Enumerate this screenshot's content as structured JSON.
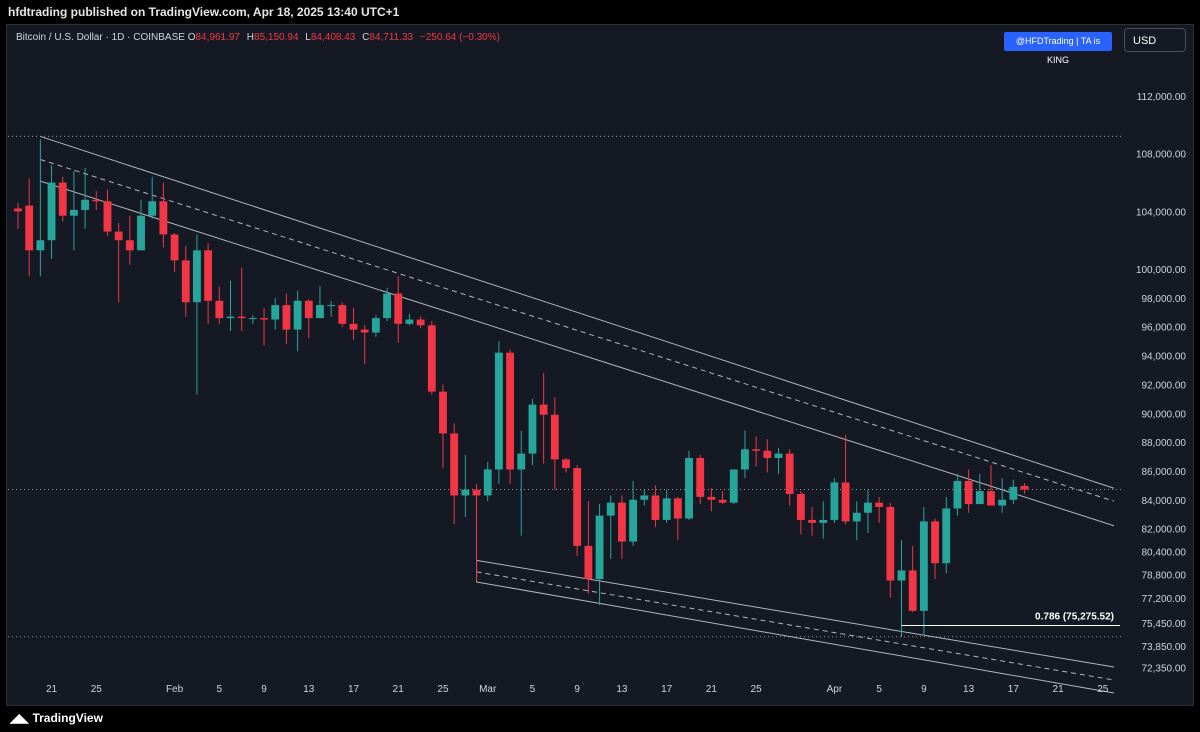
{
  "header": {
    "published": "hfdtrading published on TradingView.com, Apr 18, 2025 13:40 UTC+1"
  },
  "legend": {
    "symbol": "Bitcoin / U.S. Dollar · 1D · COINBASE",
    "o_key": "O",
    "o_val": "84,961.97",
    "h_key": "H",
    "h_val": "85,150.94",
    "l_key": "L",
    "l_val": "84,408.43",
    "c_key": "C",
    "c_val": "84,711.33",
    "change": "−250.64 (−0.30%)"
  },
  "watermark": "@HFDTrading | TA is KING",
  "currency_button": "USD",
  "footer": {
    "brand": "TradingView"
  },
  "colors": {
    "up": "#26a69a",
    "down": "#f23645",
    "background": "#151923",
    "channel": "#b2b5be"
  },
  "chart_data": {
    "type": "candlestick",
    "symbol": "BTCUSD",
    "timeframe": "1D",
    "ylim": [
      71500,
      114500
    ],
    "xlim": [
      "2025-01-18",
      "2025-04-26"
    ],
    "y_ticks": [
      {
        "value": 112000,
        "label": "112,000.00"
      },
      {
        "value": 108000,
        "label": "108,000.00"
      },
      {
        "value": 104000,
        "label": "104,000.00"
      },
      {
        "value": 100000,
        "label": "100,000.00"
      },
      {
        "value": 98000,
        "label": "98,000.00"
      },
      {
        "value": 96000,
        "label": "96,000.00"
      },
      {
        "value": 94000,
        "label": "94,000.00"
      },
      {
        "value": 92000,
        "label": "92,000.00"
      },
      {
        "value": 90000,
        "label": "90,000.00"
      },
      {
        "value": 88000,
        "label": "88,000.00"
      },
      {
        "value": 86000,
        "label": "86,000.00"
      },
      {
        "value": 84000,
        "label": "84,000.00"
      },
      {
        "value": 82000,
        "label": "82,000.00"
      },
      {
        "value": 80400,
        "label": "80,400.00"
      },
      {
        "value": 78800,
        "label": "78,800.00"
      },
      {
        "value": 77200,
        "label": "77,200.00"
      },
      {
        "value": 75450,
        "label": "75,450.00"
      },
      {
        "value": 73850,
        "label": "73,850.00"
      },
      {
        "value": 72350,
        "label": "72,350.00"
      }
    ],
    "x_ticks": [
      {
        "date": "2025-01-21",
        "label": "21"
      },
      {
        "date": "2025-01-25",
        "label": "25"
      },
      {
        "date": "2025-02-01",
        "label": "Feb"
      },
      {
        "date": "2025-02-05",
        "label": "5"
      },
      {
        "date": "2025-02-09",
        "label": "9"
      },
      {
        "date": "2025-02-13",
        "label": "13"
      },
      {
        "date": "2025-02-17",
        "label": "17"
      },
      {
        "date": "2025-02-21",
        "label": "21"
      },
      {
        "date": "2025-02-25",
        "label": "25"
      },
      {
        "date": "2025-03-01",
        "label": "Mar"
      },
      {
        "date": "2025-03-05",
        "label": "5"
      },
      {
        "date": "2025-03-09",
        "label": "9"
      },
      {
        "date": "2025-03-13",
        "label": "13"
      },
      {
        "date": "2025-03-17",
        "label": "17"
      },
      {
        "date": "2025-03-21",
        "label": "21"
      },
      {
        "date": "2025-03-25",
        "label": "25"
      },
      {
        "date": "2025-04-01",
        "label": "Apr"
      },
      {
        "date": "2025-04-05",
        "label": "5"
      },
      {
        "date": "2025-04-09",
        "label": "9"
      },
      {
        "date": "2025-04-13",
        "label": "13"
      },
      {
        "date": "2025-04-17",
        "label": "17"
      },
      {
        "date": "2025-04-21",
        "label": "21"
      },
      {
        "date": "2025-04-25",
        "label": "25"
      }
    ],
    "candles": [
      {
        "date": "2025-01-18",
        "o": 104200,
        "h": 104600,
        "l": 102800,
        "c": 104000
      },
      {
        "date": "2025-01-19",
        "o": 104400,
        "h": 106300,
        "l": 99500,
        "c": 101300
      },
      {
        "date": "2025-01-20",
        "o": 101300,
        "h": 109000,
        "l": 99500,
        "c": 102000
      },
      {
        "date": "2025-01-21",
        "o": 102000,
        "h": 107200,
        "l": 100700,
        "c": 106000
      },
      {
        "date": "2025-01-22",
        "o": 106000,
        "h": 106400,
        "l": 103300,
        "c": 103700
      },
      {
        "date": "2025-01-23",
        "o": 103700,
        "h": 106800,
        "l": 101300,
        "c": 104100
      },
      {
        "date": "2025-01-24",
        "o": 104100,
        "h": 107000,
        "l": 102800,
        "c": 104800
      },
      {
        "date": "2025-01-25",
        "o": 104800,
        "h": 105400,
        "l": 104100,
        "c": 104700
      },
      {
        "date": "2025-01-26",
        "o": 104700,
        "h": 105500,
        "l": 102300,
        "c": 102600
      },
      {
        "date": "2025-01-27",
        "o": 102600,
        "h": 103200,
        "l": 97700,
        "c": 102000
      },
      {
        "date": "2025-01-28",
        "o": 102000,
        "h": 103700,
        "l": 100300,
        "c": 101300
      },
      {
        "date": "2025-01-29",
        "o": 101300,
        "h": 104800,
        "l": 101300,
        "c": 103700
      },
      {
        "date": "2025-01-30",
        "o": 103700,
        "h": 106400,
        "l": 103500,
        "c": 104700
      },
      {
        "date": "2025-01-31",
        "o": 104700,
        "h": 106000,
        "l": 101500,
        "c": 102400
      },
      {
        "date": "2025-02-01",
        "o": 102400,
        "h": 102500,
        "l": 99800,
        "c": 100600
      },
      {
        "date": "2025-02-02",
        "o": 100600,
        "h": 101600,
        "l": 96700,
        "c": 97700
      },
      {
        "date": "2025-02-03",
        "o": 97700,
        "h": 102400,
        "l": 91300,
        "c": 101300
      },
      {
        "date": "2025-02-04",
        "o": 101300,
        "h": 101800,
        "l": 96200,
        "c": 97800
      },
      {
        "date": "2025-02-05",
        "o": 97800,
        "h": 98800,
        "l": 96200,
        "c": 96600
      },
      {
        "date": "2025-02-06",
        "o": 96600,
        "h": 99200,
        "l": 95700,
        "c": 96700
      },
      {
        "date": "2025-02-07",
        "o": 96700,
        "h": 100100,
        "l": 95700,
        "c": 96600
      },
      {
        "date": "2025-02-08",
        "o": 96600,
        "h": 96800,
        "l": 96200,
        "c": 96600
      },
      {
        "date": "2025-02-09",
        "o": 96600,
        "h": 97300,
        "l": 94700,
        "c": 96500
      },
      {
        "date": "2025-02-10",
        "o": 96500,
        "h": 98000,
        "l": 95800,
        "c": 97500
      },
      {
        "date": "2025-02-11",
        "o": 97500,
        "h": 98300,
        "l": 94800,
        "c": 95800
      },
      {
        "date": "2025-02-12",
        "o": 95800,
        "h": 98500,
        "l": 94300,
        "c": 97800
      },
      {
        "date": "2025-02-13",
        "o": 97800,
        "h": 97900,
        "l": 95200,
        "c": 96600
      },
      {
        "date": "2025-02-14",
        "o": 96600,
        "h": 98800,
        "l": 96600,
        "c": 97500
      },
      {
        "date": "2025-02-15",
        "o": 97500,
        "h": 97800,
        "l": 96700,
        "c": 97500
      },
      {
        "date": "2025-02-16",
        "o": 97500,
        "h": 97700,
        "l": 96000,
        "c": 96200
      },
      {
        "date": "2025-02-17",
        "o": 96200,
        "h": 97300,
        "l": 95100,
        "c": 95800
      },
      {
        "date": "2025-02-18",
        "o": 95800,
        "h": 96100,
        "l": 93400,
        "c": 95600
      },
      {
        "date": "2025-02-19",
        "o": 95600,
        "h": 96800,
        "l": 95300,
        "c": 96600
      },
      {
        "date": "2025-02-20",
        "o": 96600,
        "h": 98700,
        "l": 96400,
        "c": 98300
      },
      {
        "date": "2025-02-21",
        "o": 98300,
        "h": 99500,
        "l": 94900,
        "c": 96200
      },
      {
        "date": "2025-02-22",
        "o": 96200,
        "h": 96900,
        "l": 96100,
        "c": 96500
      },
      {
        "date": "2025-02-23",
        "o": 96500,
        "h": 96700,
        "l": 95900,
        "c": 96100
      },
      {
        "date": "2025-02-24",
        "o": 96100,
        "h": 96400,
        "l": 91300,
        "c": 91500
      },
      {
        "date": "2025-02-25",
        "o": 91500,
        "h": 92000,
        "l": 86200,
        "c": 88600
      },
      {
        "date": "2025-02-26",
        "o": 88600,
        "h": 89300,
        "l": 82300,
        "c": 84300
      },
      {
        "date": "2025-02-27",
        "o": 84300,
        "h": 87100,
        "l": 82800,
        "c": 84700
      },
      {
        "date": "2025-02-28",
        "o": 84700,
        "h": 85100,
        "l": 78400,
        "c": 84300
      },
      {
        "date": "2025-03-01",
        "o": 84300,
        "h": 86600,
        "l": 83900,
        "c": 86100
      },
      {
        "date": "2025-03-02",
        "o": 86100,
        "h": 95000,
        "l": 85100,
        "c": 94200
      },
      {
        "date": "2025-03-03",
        "o": 94200,
        "h": 94400,
        "l": 85100,
        "c": 86100
      },
      {
        "date": "2025-03-04",
        "o": 86100,
        "h": 88800,
        "l": 81500,
        "c": 87200
      },
      {
        "date": "2025-03-05",
        "o": 87200,
        "h": 91000,
        "l": 86400,
        "c": 90600
      },
      {
        "date": "2025-03-06",
        "o": 90600,
        "h": 92800,
        "l": 86500,
        "c": 89900
      },
      {
        "date": "2025-03-07",
        "o": 89900,
        "h": 91100,
        "l": 84700,
        "c": 86800
      },
      {
        "date": "2025-03-08",
        "o": 86800,
        "h": 86900,
        "l": 85900,
        "c": 86200
      },
      {
        "date": "2025-03-09",
        "o": 86200,
        "h": 86400,
        "l": 80100,
        "c": 80800
      },
      {
        "date": "2025-03-10",
        "o": 80800,
        "h": 83900,
        "l": 77500,
        "c": 78500
      },
      {
        "date": "2025-03-11",
        "o": 78500,
        "h": 83700,
        "l": 76700,
        "c": 82900
      },
      {
        "date": "2025-03-12",
        "o": 82900,
        "h": 84300,
        "l": 79900,
        "c": 83800
      },
      {
        "date": "2025-03-13",
        "o": 83800,
        "h": 84300,
        "l": 79900,
        "c": 81100
      },
      {
        "date": "2025-03-14",
        "o": 81100,
        "h": 85300,
        "l": 80800,
        "c": 84000
      },
      {
        "date": "2025-03-15",
        "o": 84000,
        "h": 84700,
        "l": 83600,
        "c": 84300
      },
      {
        "date": "2025-03-16",
        "o": 84300,
        "h": 85000,
        "l": 82100,
        "c": 82600
      },
      {
        "date": "2025-03-17",
        "o": 82600,
        "h": 84700,
        "l": 82400,
        "c": 84100
      },
      {
        "date": "2025-03-18",
        "o": 84100,
        "h": 84200,
        "l": 81200,
        "c": 82700
      },
      {
        "date": "2025-03-19",
        "o": 82700,
        "h": 87400,
        "l": 82600,
        "c": 86900
      },
      {
        "date": "2025-03-20",
        "o": 86900,
        "h": 87100,
        "l": 83700,
        "c": 84200
      },
      {
        "date": "2025-03-21",
        "o": 84200,
        "h": 84800,
        "l": 83200,
        "c": 84000
      },
      {
        "date": "2025-03-22",
        "o": 84000,
        "h": 84600,
        "l": 83700,
        "c": 83800
      },
      {
        "date": "2025-03-23",
        "o": 83800,
        "h": 86100,
        "l": 83700,
        "c": 86100
      },
      {
        "date": "2025-03-24",
        "o": 86100,
        "h": 88800,
        "l": 85500,
        "c": 87500
      },
      {
        "date": "2025-03-25",
        "o": 87500,
        "h": 88400,
        "l": 86300,
        "c": 87400
      },
      {
        "date": "2025-03-26",
        "o": 87400,
        "h": 88200,
        "l": 85900,
        "c": 86900
      },
      {
        "date": "2025-03-27",
        "o": 86900,
        "h": 87600,
        "l": 85800,
        "c": 87200
      },
      {
        "date": "2025-03-28",
        "o": 87200,
        "h": 87500,
        "l": 83600,
        "c": 84400
      },
      {
        "date": "2025-03-29",
        "o": 84400,
        "h": 84600,
        "l": 81600,
        "c": 82600
      },
      {
        "date": "2025-03-30",
        "o": 82600,
        "h": 83500,
        "l": 81500,
        "c": 82400
      },
      {
        "date": "2025-03-31",
        "o": 82400,
        "h": 83900,
        "l": 81300,
        "c": 82600
      },
      {
        "date": "2025-04-01",
        "o": 82600,
        "h": 85500,
        "l": 82400,
        "c": 85200
      },
      {
        "date": "2025-04-02",
        "o": 85200,
        "h": 88500,
        "l": 82300,
        "c": 82500
      },
      {
        "date": "2025-04-03",
        "o": 82500,
        "h": 83900,
        "l": 81200,
        "c": 83100
      },
      {
        "date": "2025-04-04",
        "o": 83100,
        "h": 84700,
        "l": 81700,
        "c": 83800
      },
      {
        "date": "2025-04-05",
        "o": 83800,
        "h": 84200,
        "l": 82400,
        "c": 83500
      },
      {
        "date": "2025-04-06",
        "o": 83500,
        "h": 83800,
        "l": 77200,
        "c": 78400
      },
      {
        "date": "2025-04-07",
        "o": 78400,
        "h": 81200,
        "l": 74500,
        "c": 79100
      },
      {
        "date": "2025-04-08",
        "o": 79100,
        "h": 80800,
        "l": 76200,
        "c": 76300
      },
      {
        "date": "2025-04-09",
        "o": 76300,
        "h": 83500,
        "l": 74600,
        "c": 82500
      },
      {
        "date": "2025-04-10",
        "o": 82500,
        "h": 82700,
        "l": 78500,
        "c": 79600
      },
      {
        "date": "2025-04-11",
        "o": 79600,
        "h": 84200,
        "l": 78900,
        "c": 83400
      },
      {
        "date": "2025-04-12",
        "o": 83400,
        "h": 85800,
        "l": 82900,
        "c": 85300
      },
      {
        "date": "2025-04-13",
        "o": 85300,
        "h": 86100,
        "l": 83100,
        "c": 83700
      },
      {
        "date": "2025-04-14",
        "o": 83700,
        "h": 85800,
        "l": 83700,
        "c": 84600
      },
      {
        "date": "2025-04-15",
        "o": 84600,
        "h": 86400,
        "l": 83600,
        "c": 83600
      },
      {
        "date": "2025-04-16",
        "o": 83600,
        "h": 85500,
        "l": 83100,
        "c": 84000
      },
      {
        "date": "2025-04-17",
        "o": 84000,
        "h": 85400,
        "l": 83700,
        "c": 84900
      },
      {
        "date": "2025-04-18",
        "o": 84962,
        "h": 85151,
        "l": 84408,
        "c": 84711
      }
    ],
    "trendlines": [
      {
        "name": "upper-channel-top",
        "style": "solid",
        "p1": {
          "date": "2025-01-20",
          "price": 109200
        },
        "p2": {
          "date": "2025-04-26",
          "price": 84800
        }
      },
      {
        "name": "upper-channel-mid",
        "style": "dashed",
        "p1": {
          "date": "2025-01-20",
          "price": 107600
        },
        "p2": {
          "date": "2025-04-26",
          "price": 83900
        }
      },
      {
        "name": "upper-channel-bottom",
        "style": "solid",
        "p1": {
          "date": "2025-01-20",
          "price": 106100
        },
        "p2": {
          "date": "2025-04-26",
          "price": 82200
        }
      },
      {
        "name": "lower-channel-top",
        "style": "solid",
        "p1": {
          "date": "2025-02-28",
          "price": 79800
        },
        "p2": {
          "date": "2025-04-26",
          "price": 72400
        }
      },
      {
        "name": "lower-channel-mid",
        "style": "dashed",
        "p1": {
          "date": "2025-02-28",
          "price": 79000
        },
        "p2": {
          "date": "2025-04-26",
          "price": 71500
        }
      },
      {
        "name": "lower-channel-bottom",
        "style": "solid",
        "p1": {
          "date": "2025-02-28",
          "price": 78300
        },
        "p2": {
          "date": "2025-04-26",
          "price": 70600
        }
      }
    ],
    "horizontal_levels": [
      {
        "price": 109200,
        "style": "dotted"
      },
      {
        "price": 84711,
        "style": "dotted"
      },
      {
        "price": 74500,
        "style": "dotted"
      }
    ],
    "fib_level": {
      "label": "0.786 (75,275.52)",
      "price": 75275.52,
      "from_date": "2025-04-07",
      "to_date": "2025-04-26"
    },
    "channel_anchor_vertical": {
      "date": "2025-02-28",
      "from_price": 84300,
      "to_price": 78300
    }
  }
}
